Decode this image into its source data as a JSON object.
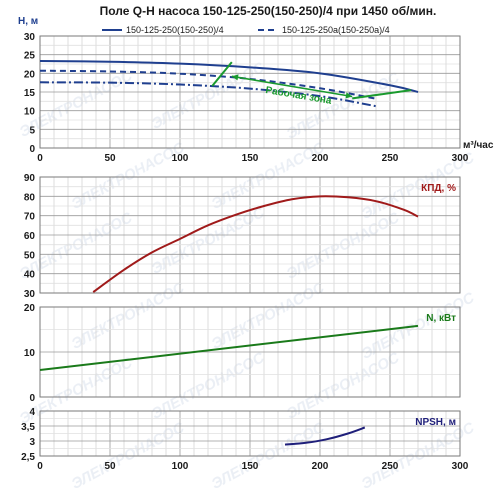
{
  "title": "Поле Q-H насоса 150-125-250(150-250)/4 при 1450 об/мин.",
  "watermark_text": "ЭЛЕКТРОНАСОС",
  "chart_data": [
    {
      "id": "qh",
      "type": "line",
      "ylabel": "H, м",
      "xlabel": "м³/час",
      "xlim": [
        0,
        300
      ],
      "ylim": [
        0,
        30
      ],
      "x_ticks": [
        "0",
        "50",
        "100",
        "150",
        "200",
        "250",
        "300"
      ],
      "y_ticks": [
        "0",
        "5",
        "10",
        "15",
        "20",
        "25",
        "30"
      ],
      "grid": true,
      "legend_position": "top",
      "series": [
        {
          "name": "150-125-250(150-250)/4",
          "color": "#1f3f8f",
          "style": "solid",
          "x": [
            0,
            50,
            100,
            150,
            200,
            250,
            270
          ],
          "y": [
            23.3,
            23.1,
            22.6,
            21.6,
            20.0,
            16.8,
            15.0
          ]
        },
        {
          "name": "150-125-250а(150-250а)/4",
          "color": "#1f3f8f",
          "style": "dashed",
          "x": [
            0,
            50,
            100,
            150,
            200,
            240
          ],
          "y": [
            20.7,
            20.5,
            19.9,
            18.5,
            16.0,
            13.2
          ]
        },
        {
          "name": "",
          "color": "#1f3f8f",
          "style": "dashdot",
          "x": [
            0,
            50,
            100,
            150,
            200,
            240
          ],
          "y": [
            17.6,
            17.5,
            17.0,
            15.9,
            13.9,
            11.2
          ]
        }
      ],
      "working_zone": {
        "label": "Рабочая зона",
        "color": "#1a9a2e",
        "left_boundary": {
          "x": [
            123,
            137
          ],
          "y": [
            16.6,
            23.0
          ]
        },
        "right_boundary": {
          "x": [
            223,
            265
          ],
          "y": [
            13.3,
            15.5
          ]
        },
        "arrow": {
          "x": [
            137,
            223
          ],
          "y": [
            19.2,
            13.8
          ]
        }
      }
    },
    {
      "id": "efficiency",
      "type": "line",
      "ylabel": "КПД, %",
      "xlim": [
        0,
        300
      ],
      "ylim": [
        30,
        90
      ],
      "y_ticks": [
        "30",
        "40",
        "50",
        "60",
        "70",
        "80",
        "90"
      ],
      "grid": true,
      "series": [
        {
          "name": "КПД, %",
          "color": "#a01a1a",
          "x": [
            38,
            60,
            80,
            100,
            120,
            140,
            160,
            180,
            200,
            220,
            240,
            260,
            270
          ],
          "y": [
            30.5,
            42,
            51,
            58,
            65,
            70.5,
            75,
            78.5,
            80,
            79.5,
            77.5,
            73,
            69.5
          ]
        }
      ]
    },
    {
      "id": "power",
      "type": "line",
      "ylabel": "N, кВт",
      "xlim": [
        0,
        300
      ],
      "ylim": [
        0,
        20
      ],
      "y_ticks": [
        "0",
        "10",
        "20"
      ],
      "grid": true,
      "series": [
        {
          "name": "N, кВт",
          "color": "#1a7a1a",
          "x": [
            0,
            270
          ],
          "y": [
            6.0,
            15.8
          ]
        }
      ]
    },
    {
      "id": "npsh",
      "type": "line",
      "ylabel": "NPSH, м",
      "xlim": [
        0,
        300
      ],
      "ylim": [
        2.5,
        4
      ],
      "x_ticks": [
        "0",
        "50",
        "100",
        "150",
        "200",
        "250",
        "300"
      ],
      "y_ticks": [
        "2,5",
        "3",
        "3,5",
        "4"
      ],
      "grid": true,
      "series": [
        {
          "name": "NPSH, м",
          "color": "#1f1f7a",
          "x": [
            175,
            190,
            205,
            220,
            232
          ],
          "y": [
            2.88,
            2.94,
            3.06,
            3.25,
            3.45
          ]
        }
      ]
    }
  ]
}
